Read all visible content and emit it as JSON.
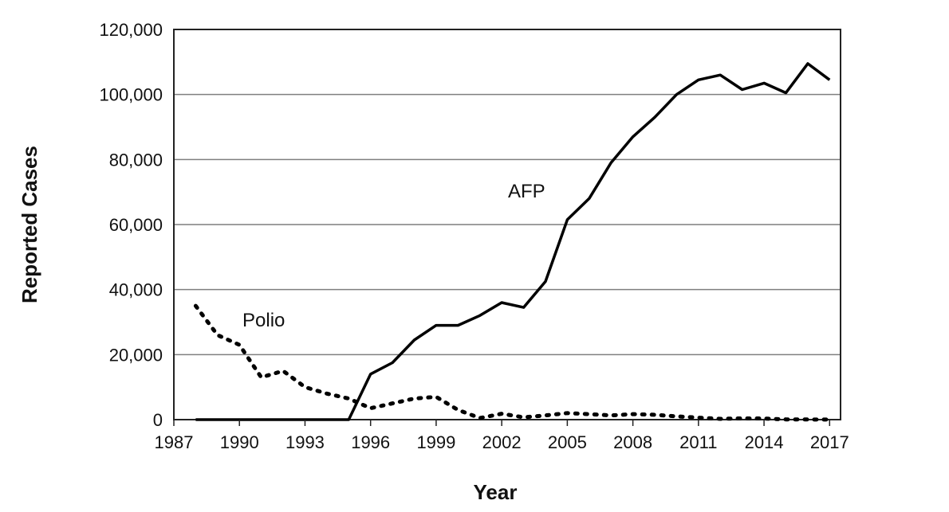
{
  "chart_data": {
    "type": "line",
    "title": "",
    "xlabel": "Year",
    "ylabel": "Reported Cases",
    "x_ticks": [
      "1987",
      "1990",
      "1993",
      "1996",
      "1999",
      "2002",
      "2005",
      "2008",
      "2011",
      "2014",
      "2017"
    ],
    "y_ticks": [
      "0",
      "20,000",
      "40,000",
      "60,000",
      "80,000",
      "100,000",
      "120,000"
    ],
    "xlim": [
      1987,
      2017.5
    ],
    "ylim": [
      0,
      120000
    ],
    "grid": {
      "horizontal": true,
      "vertical": false
    },
    "legend": "none",
    "series": [
      {
        "name": "Polio",
        "style": "dotted",
        "color": "#000000",
        "x": [
          1988,
          1989,
          1990,
          1991,
          1992,
          1993,
          1994,
          1995,
          1996,
          1997,
          1998,
          1999,
          2000,
          2001,
          2002,
          2003,
          2004,
          2005,
          2006,
          2007,
          2008,
          2009,
          2010,
          2011,
          2012,
          2013,
          2014,
          2015,
          2016,
          2017
        ],
        "values": [
          35000,
          26000,
          23000,
          13000,
          15000,
          10000,
          8000,
          6500,
          3500,
          5000,
          6500,
          7000,
          3000,
          500,
          1800,
          700,
          1300,
          2000,
          1700,
          1300,
          1700,
          1500,
          1000,
          600,
          250,
          400,
          350,
          75,
          40,
          20
        ]
      },
      {
        "name": "AFP",
        "style": "solid",
        "color": "#000000",
        "x": [
          1988,
          1989,
          1990,
          1991,
          1992,
          1993,
          1994,
          1995,
          1996,
          1997,
          1998,
          1999,
          2000,
          2001,
          2002,
          2003,
          2004,
          2005,
          2006,
          2007,
          2008,
          2009,
          2010,
          2011,
          2012,
          2013,
          2014,
          2015,
          2016,
          2017
        ],
        "values": [
          0,
          0,
          0,
          0,
          0,
          0,
          0,
          0,
          14000,
          17500,
          24500,
          29000,
          29000,
          32000,
          36000,
          34500,
          42500,
          61500,
          68000,
          79000,
          87000,
          93000,
          100000,
          104500,
          106000,
          101500,
          103500,
          100500,
          109500,
          104500
        ]
      }
    ]
  }
}
